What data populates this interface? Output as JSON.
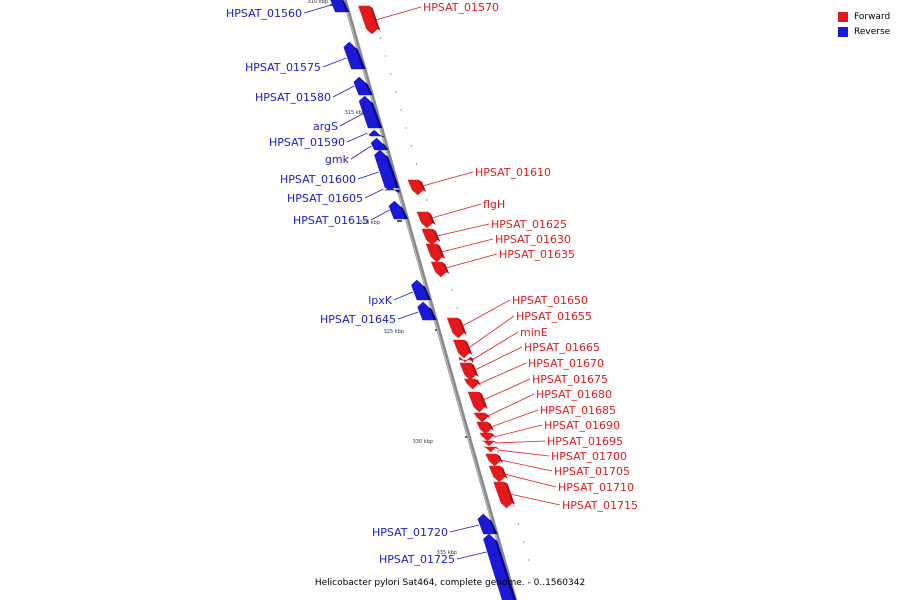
{
  "caption": "Helicobacter pylori Sat464, complete genome. - 0..1560342",
  "legend": [
    {
      "label": "Forward",
      "color": "#e31a1c"
    },
    {
      "label": "Reverse",
      "color": "#1a1ad6"
    }
  ],
  "colors": {
    "forward": "#e31a1c",
    "reverse": "#1a1ad6",
    "backbone": "#888888"
  },
  "ticks": [
    "310 kbp",
    "315 kbp",
    "320 kbp",
    "325 kbp",
    "330 kbp",
    "335 kbp"
  ],
  "genes": [
    {
      "name": "HPSAT_01560",
      "strand": "reverse"
    },
    {
      "name": "HPSAT_01570",
      "strand": "forward"
    },
    {
      "name": "HPSAT_01575",
      "strand": "reverse"
    },
    {
      "name": "HPSAT_01580",
      "strand": "reverse"
    },
    {
      "name": "argS",
      "strand": "reverse"
    },
    {
      "name": "HPSAT_01590",
      "strand": "reverse"
    },
    {
      "name": "gmk",
      "strand": "reverse"
    },
    {
      "name": "HPSAT_01600",
      "strand": "reverse"
    },
    {
      "name": "HPSAT_01605",
      "strand": "reverse"
    },
    {
      "name": "HPSAT_01610",
      "strand": "forward"
    },
    {
      "name": "HPSAT_01615",
      "strand": "reverse"
    },
    {
      "name": "flgH",
      "strand": "forward"
    },
    {
      "name": "HPSAT_01625",
      "strand": "forward"
    },
    {
      "name": "HPSAT_01630",
      "strand": "forward"
    },
    {
      "name": "HPSAT_01635",
      "strand": "forward"
    },
    {
      "name": "lpxK",
      "strand": "reverse"
    },
    {
      "name": "HPSAT_01645",
      "strand": "reverse"
    },
    {
      "name": "HPSAT_01650",
      "strand": "forward"
    },
    {
      "name": "HPSAT_01655",
      "strand": "forward"
    },
    {
      "name": "minE",
      "strand": "forward"
    },
    {
      "name": "HPSAT_01665",
      "strand": "forward"
    },
    {
      "name": "HPSAT_01670",
      "strand": "forward"
    },
    {
      "name": "HPSAT_01675",
      "strand": "forward"
    },
    {
      "name": "HPSAT_01680",
      "strand": "forward"
    },
    {
      "name": "HPSAT_01685",
      "strand": "forward"
    },
    {
      "name": "HPSAT_01690",
      "strand": "forward"
    },
    {
      "name": "HPSAT_01695",
      "strand": "forward"
    },
    {
      "name": "HPSAT_01700",
      "strand": "forward"
    },
    {
      "name": "HPSAT_01705",
      "strand": "forward"
    },
    {
      "name": "HPSAT_01710",
      "strand": "forward"
    },
    {
      "name": "HPSAT_01715",
      "strand": "forward"
    },
    {
      "name": "HPSAT_01720",
      "strand": "reverse"
    },
    {
      "name": "HPSAT_01725",
      "strand": "reverse"
    }
  ]
}
